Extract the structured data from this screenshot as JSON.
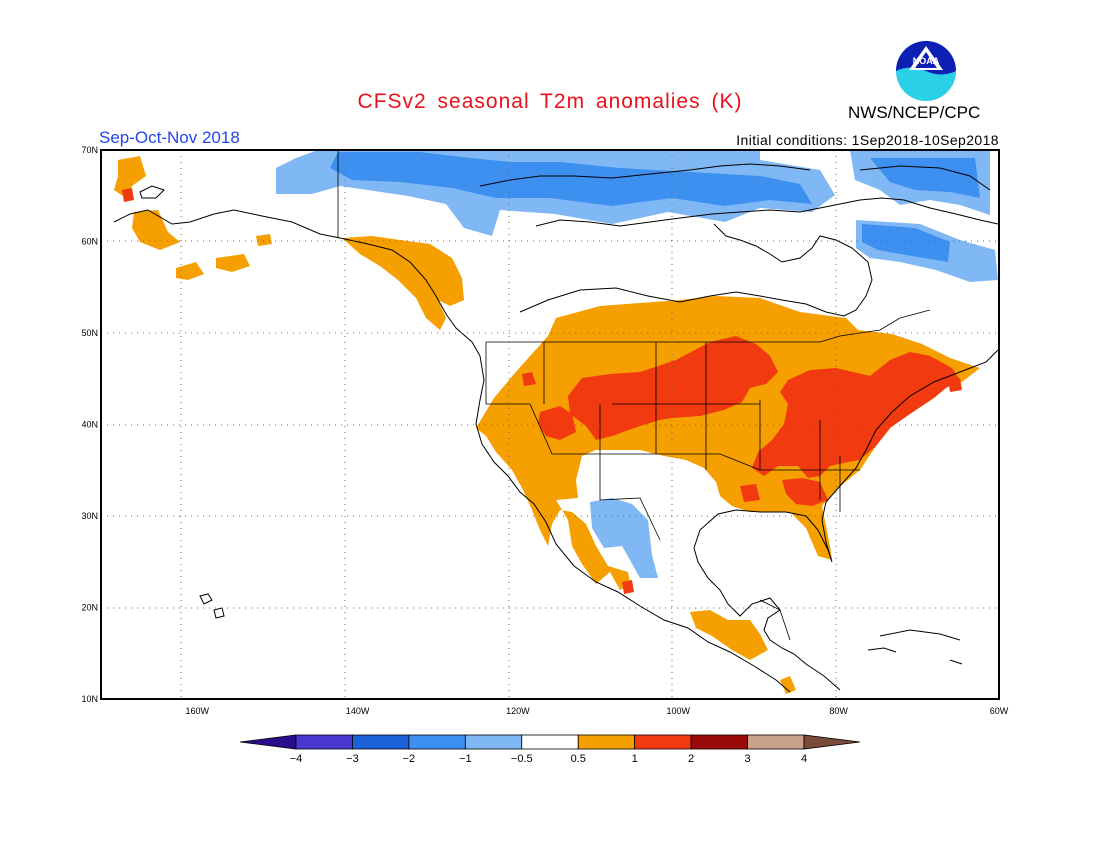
{
  "title": "CFSv2 seasonal T2m anomalies (K)",
  "agency": "NWS/NCEP/CPC",
  "season": "Sep-Oct-Nov 2018",
  "initial_conditions": "Initial conditions: 1Sep2018-10Sep2018",
  "logo_text": "NOAA",
  "map": {
    "lon_range": [
      -172,
      -60
    ],
    "lat_range": [
      10,
      70
    ],
    "lat_ticks": [
      "10N",
      "20N",
      "30N",
      "40N",
      "50N",
      "60N",
      "70N"
    ],
    "lon_ticks": [
      "160W",
      "140W",
      "120W",
      "100W",
      "80W",
      "60W"
    ],
    "gridlines": "dotted"
  },
  "colorbar": {
    "labels": [
      "-4",
      "-3",
      "-2",
      "-1",
      "-0.5",
      "0.5",
      "1",
      "2",
      "3",
      "4"
    ],
    "colors": [
      "#2a0d8c",
      "#4a37d0",
      "#1d62d8",
      "#3d8ff0",
      "#7fb8f4",
      "#ffffff",
      "#f5a000",
      "#f23a10",
      "#9b0a0a",
      "#c9a08a",
      "#7a4a3a"
    ]
  }
}
